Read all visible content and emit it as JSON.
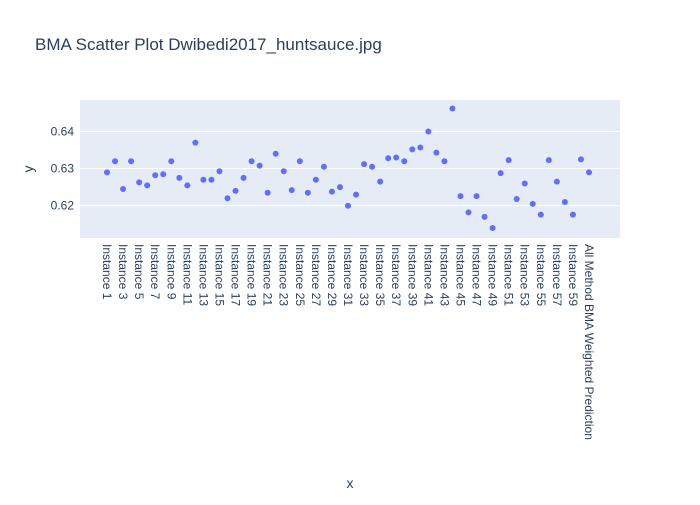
{
  "chart_data": {
    "type": "scatter",
    "title": "BMA Scatter Plot Dwibedi2017_huntsauce.jpg",
    "xlabel": "x",
    "ylabel": "y",
    "ylim": [
      0.6113,
      0.6485
    ],
    "yticks": [
      0.62,
      0.63,
      0.64
    ],
    "ytick_labels": [
      "0.62",
      "0.63",
      "0.64"
    ],
    "grid": true,
    "legend": "none",
    "marker_color": "#636efa",
    "plot_bg": "#e5ecf6",
    "categories": [
      "Instance 1",
      "Instance 2",
      "Instance 3",
      "Instance 4",
      "Instance 5",
      "Instance 6",
      "Instance 7",
      "Instance 8",
      "Instance 9",
      "Instance 10",
      "Instance 11",
      "Instance 12",
      "Instance 13",
      "Instance 14",
      "Instance 15",
      "Instance 16",
      "Instance 17",
      "Instance 18",
      "Instance 19",
      "Instance 20",
      "Instance 21",
      "Instance 22",
      "Instance 23",
      "Instance 24",
      "Instance 25",
      "Instance 26",
      "Instance 27",
      "Instance 28",
      "Instance 29",
      "Instance 30",
      "Instance 31",
      "Instance 32",
      "Instance 33",
      "Instance 34",
      "Instance 35",
      "Instance 36",
      "Instance 37",
      "Instance 38",
      "Instance 39",
      "Instance 40",
      "Instance 41",
      "Instance 42",
      "Instance 43",
      "Instance 44",
      "Instance 45",
      "Instance 46",
      "Instance 47",
      "Instance 48",
      "Instance 49",
      "Instance 50",
      "Instance 51",
      "Instance 52",
      "Instance 53",
      "Instance 54",
      "Instance 55",
      "Instance 56",
      "Instance 57",
      "Instance 58",
      "Instance 59",
      "Instance 60",
      "All Method BMA Weighted Prediction"
    ],
    "tick_labels": [
      "Instance 1",
      "Instance 3",
      "Instance 5",
      "Instance 7",
      "Instance 9",
      "Instance 11",
      "Instance 13",
      "Instance 15",
      "Instance 17",
      "Instance 19",
      "Instance 21",
      "Instance 23",
      "Instance 25",
      "Instance 27",
      "Instance 29",
      "Instance 31",
      "Instance 33",
      "Instance 35",
      "Instance 37",
      "Instance 39",
      "Instance 41",
      "Instance 43",
      "Instance 45",
      "Instance 47",
      "Instance 49",
      "Instance 51",
      "Instance 53",
      "Instance 55",
      "Instance 57",
      "Instance 59",
      "All Method BMA Weighted Prediction"
    ],
    "values": [
      0.629,
      0.632,
      0.6245,
      0.632,
      0.6263,
      0.6255,
      0.6282,
      0.6285,
      0.632,
      0.6275,
      0.6255,
      0.637,
      0.627,
      0.627,
      0.6293,
      0.622,
      0.624,
      0.6275,
      0.632,
      0.6308,
      0.6235,
      0.634,
      0.6293,
      0.6242,
      0.632,
      0.6235,
      0.627,
      0.6305,
      0.6238,
      0.625,
      0.62,
      0.623,
      0.6312,
      0.6305,
      0.6265,
      0.6328,
      0.633,
      0.632,
      0.6352,
      0.6357,
      0.64,
      0.6343,
      0.632,
      0.6462,
      0.6226,
      0.6182,
      0.6226,
      0.617,
      0.614,
      0.6288,
      0.6323,
      0.6218,
      0.626,
      0.6205,
      0.6176,
      0.6323,
      0.6265,
      0.621,
      0.6176,
      0.6325,
      0.629
    ]
  }
}
